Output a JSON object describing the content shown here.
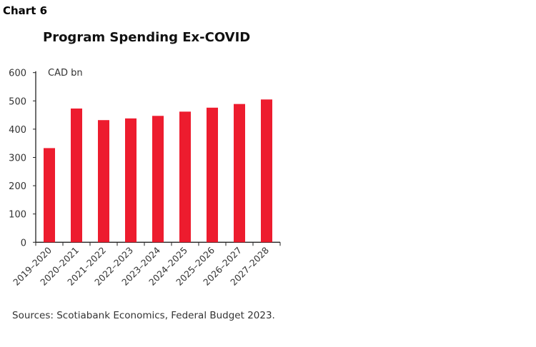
{
  "chart_label": "Chart 6",
  "chart_data": {
    "type": "bar",
    "title": "Program Spending Ex-COVID",
    "ylabel": "CAD bn",
    "xlabel": "",
    "categories": [
      "2019–2020",
      "2020–2021",
      "2021–2022",
      "2022–2023",
      "2023–2024",
      "2024–2025",
      "2025–2026",
      "2026–2027",
      "2027–2028"
    ],
    "values": [
      333,
      473,
      432,
      438,
      447,
      462,
      476,
      489,
      505
    ],
    "ylim": [
      0,
      600
    ],
    "yticks": [
      0,
      100,
      200,
      300,
      400,
      500,
      600
    ],
    "bar_color": "#ed1c2e",
    "grid": false
  },
  "source": "Sources: Scotiabank Economics, Federal Budget 2023."
}
